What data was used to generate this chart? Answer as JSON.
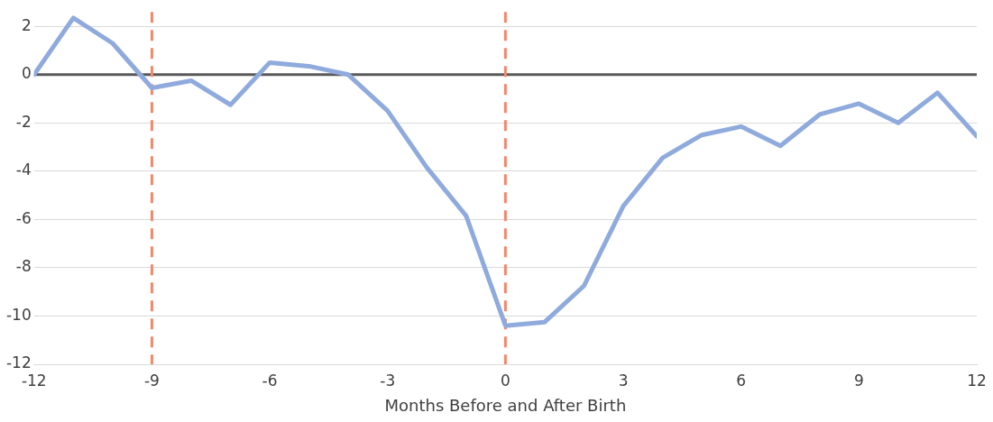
{
  "chart_data": {
    "type": "line",
    "xlabel": "Months Before and After Birth",
    "x": [
      -12,
      -11,
      -10,
      -9,
      -8,
      -7,
      -6,
      -5,
      -4,
      -3,
      -2,
      -1,
      0,
      1,
      2,
      3,
      4,
      5,
      6,
      7,
      8,
      9,
      10,
      11,
      12
    ],
    "series": [
      {
        "color": "#8faadc",
        "values": [
          0,
          2.35,
          1.3,
          -0.55,
          -0.25,
          -1.25,
          0.5,
          0.35,
          0,
          -1.5,
          -3.85,
          -5.85,
          -10.4,
          -10.25,
          -8.75,
          -5.45,
          -3.45,
          -2.5,
          -2.15,
          -2.95,
          -1.65,
          -1.2,
          -2.0,
          -0.75,
          -2.55
        ]
      }
    ],
    "xlim": [
      -12,
      12
    ],
    "xticks": [
      -12,
      -9,
      -6,
      -3,
      0,
      3,
      6,
      9,
      12
    ],
    "ylim": [
      -12,
      2.6
    ],
    "yticks": [
      -12,
      -10,
      -8,
      -6,
      -4,
      -2,
      0,
      2
    ],
    "ref_lines": [
      {
        "axis": "y",
        "value": 0,
        "color": "#595959",
        "line_style": "solid"
      },
      {
        "axis": "x",
        "value": -9,
        "color": "#f4876a",
        "line_style": "dashed"
      },
      {
        "axis": "x",
        "value": 0,
        "color": "#f4876a",
        "line_style": "dashed"
      }
    ],
    "grid": "y",
    "legend": false,
    "marker": "none",
    "line_style": "solid"
  }
}
